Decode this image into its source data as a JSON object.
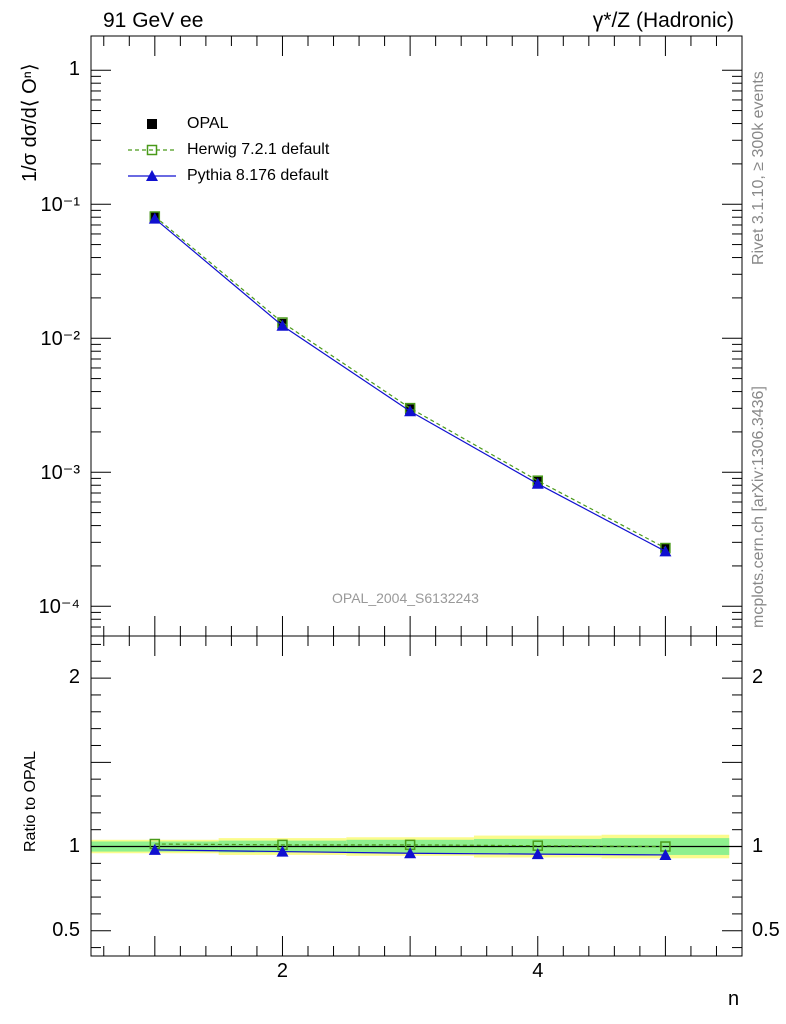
{
  "header": {
    "left": "91 GeV ee",
    "right": "γ*/Z (Hadronic)"
  },
  "side_text": {
    "rivet": "Rivet 3.1.10, ≥ 300k events",
    "mcplots": "mcplots.cern.ch [arXiv:1306.3436]"
  },
  "watermark": "OPAL_2004_S6132243",
  "legend": [
    {
      "name": "OPAL",
      "marker": "filled-square",
      "color": "#000000"
    },
    {
      "name": "Herwig 7.2.1 default",
      "marker": "open-square",
      "color": "#4a9a1a",
      "dashed": true
    },
    {
      "name": "Pythia 8.176 default",
      "marker": "filled-triangle",
      "color": "#1010d0"
    }
  ],
  "chart_data": [
    {
      "type": "line",
      "panel": "main",
      "ylabel": "1/σ dσ/d⟨ Oⁿ⟩",
      "yscale": "log",
      "ylim": [
        6e-05,
        1.8
      ],
      "xlim": [
        0.5,
        5.6
      ],
      "x": [
        1,
        2,
        3,
        4,
        5
      ],
      "yticks": [
        {
          "value": 1,
          "label": "1"
        },
        {
          "value": 0.1,
          "label": "10⁻¹"
        },
        {
          "value": 0.01,
          "label": "10⁻²"
        },
        {
          "value": 0.001,
          "label": "10⁻³"
        },
        {
          "value": 0.0001,
          "label": "10⁻⁴"
        }
      ],
      "series": [
        {
          "name": "OPAL",
          "values": [
            0.08,
            0.0128,
            0.00295,
            0.00085,
            0.00027
          ]
        },
        {
          "name": "Herwig 7.2.1 default",
          "values": [
            0.081,
            0.0131,
            0.00301,
            0.000865,
            0.000272
          ]
        },
        {
          "name": "Pythia 8.176 default",
          "values": [
            0.078,
            0.0124,
            0.00285,
            0.00082,
            0.000257
          ]
        }
      ]
    },
    {
      "type": "line",
      "panel": "ratio",
      "ylabel": "Ratio to OPAL",
      "xlabel": "n",
      "ylim": [
        0.35,
        2.25
      ],
      "xlim": [
        0.5,
        5.6
      ],
      "x": [
        1,
        2,
        3,
        4,
        5
      ],
      "xticks": [
        {
          "value": 2,
          "label": "2"
        },
        {
          "value": 4,
          "label": "4"
        }
      ],
      "yticks": [
        {
          "value": 2,
          "label": "2"
        },
        {
          "value": 1,
          "label": "1"
        },
        {
          "value": 0.5,
          "label": "0.5"
        }
      ],
      "bands": {
        "stat": [
          0.03,
          0.035,
          0.04,
          0.045,
          0.05
        ],
        "total": [
          0.04,
          0.05,
          0.055,
          0.065,
          0.07
        ]
      },
      "series": [
        {
          "name": "Herwig 7.2.1 default",
          "values": [
            1.015,
            1.01,
            1.01,
            1.005,
            1.0
          ]
        },
        {
          "name": "Pythia 8.176 default",
          "values": [
            0.98,
            0.97,
            0.96,
            0.955,
            0.95
          ]
        }
      ]
    }
  ]
}
